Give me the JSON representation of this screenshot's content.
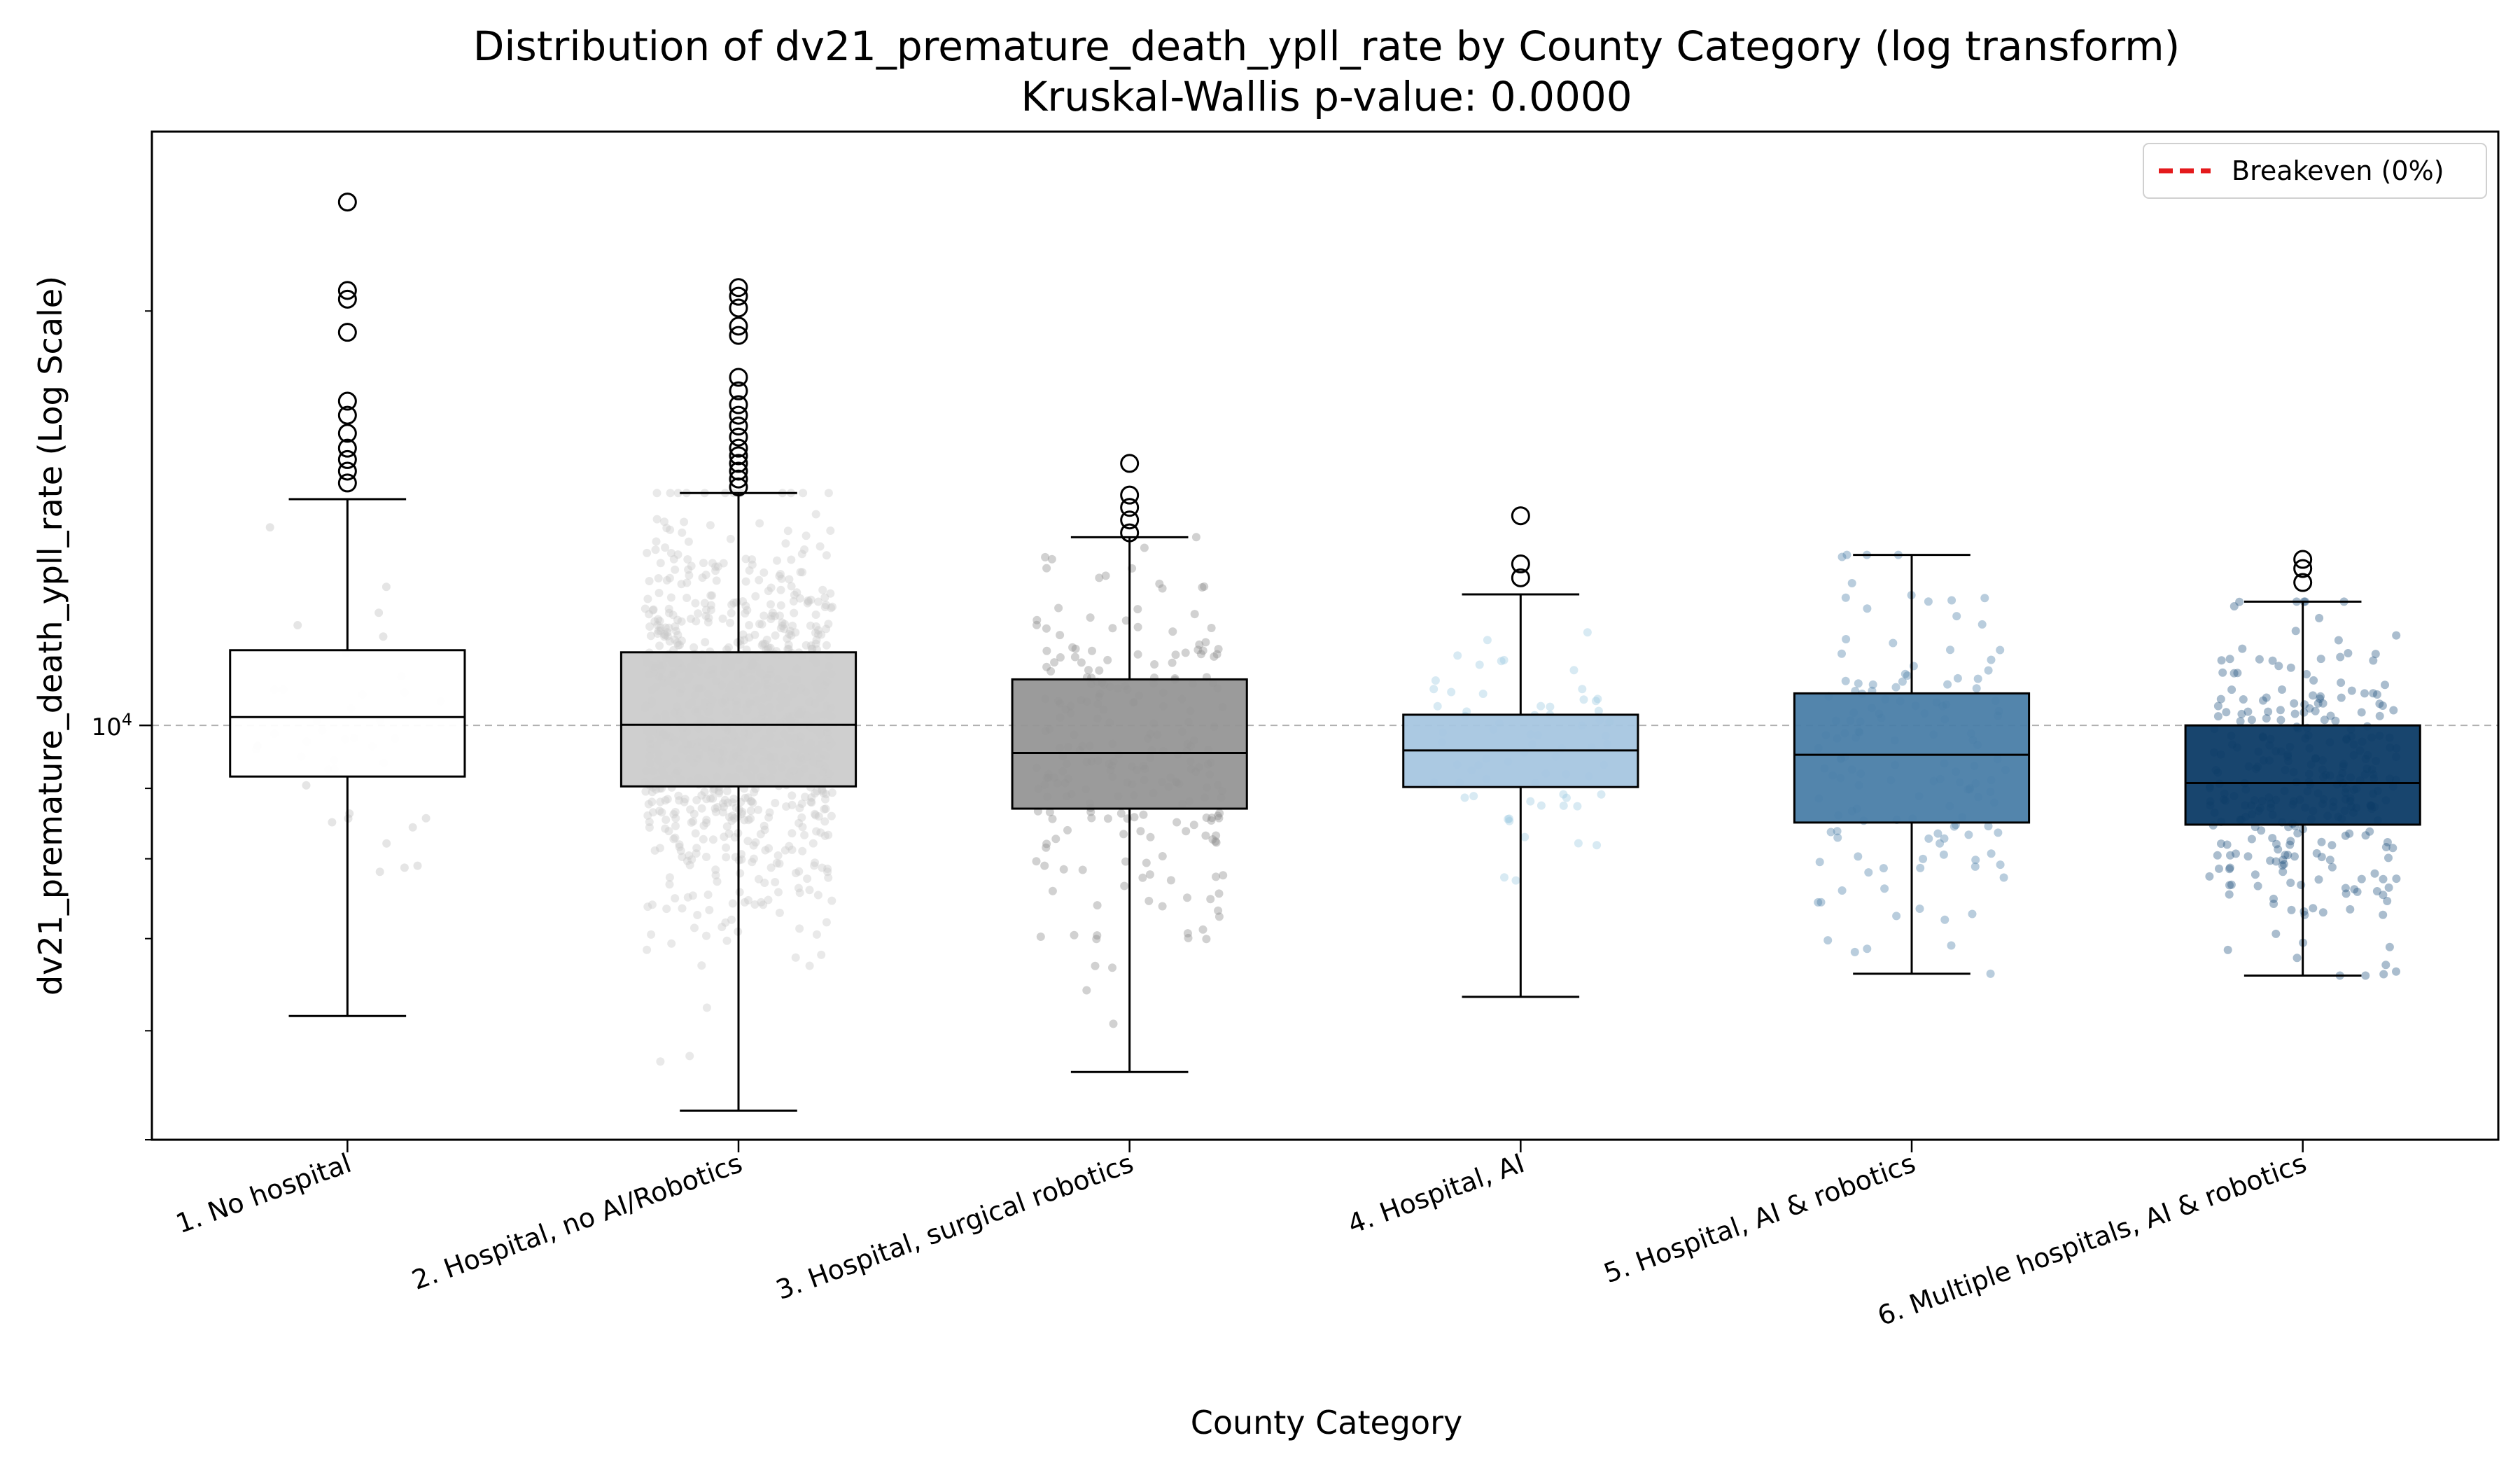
{
  "chart_data": {
    "type": "box",
    "title": "Distribution of dv21_premature_death_ypll_rate by County Category (log transform)",
    "subtitle": "Kruskal-Wallis p-value: 0.0000",
    "xlabel": "County Category",
    "ylabel": "dv21_premature_death_ypll_rate (Log Scale)",
    "y_scale": "log",
    "ylim": [
      5000,
      27000
    ],
    "y_ticks": [
      {
        "value": 10000,
        "label": "10^4"
      }
    ],
    "grid": false,
    "reference_line": {
      "value": 10000,
      "color": "#b0b0b0",
      "style": "dashed"
    },
    "legend": {
      "placement": "top-right",
      "entries": [
        {
          "label": "Breakeven (0%)",
          "color": "#e41a1c",
          "style": "dashed"
        }
      ]
    },
    "categories": [
      "1. No hospital",
      "2. Hospital, no AI/Robotics",
      "3. Hospital, surgical robotics",
      "4. Hospital, AI",
      "5. Hospital, AI & robotics",
      "6. Multiple hospitals, AI & robotics"
    ],
    "series": [
      {
        "category": "1. No hospital",
        "color": "#ffffff",
        "point_color": "#bdbdbd",
        "point_count": 40,
        "whisker_low": 6150,
        "q1": 9180,
        "median": 10140,
        "q3": 11340,
        "whisker_high": 14600,
        "outliers": [
          15000,
          15300,
          15600,
          15900,
          16300,
          16800,
          17200,
          19300,
          20400,
          20700,
          24000
        ]
      },
      {
        "category": "2. Hospital, no AI/Robotics",
        "color": "#cccccc",
        "point_color": "#c8c8c8",
        "point_count": 900,
        "whisker_low": 5250,
        "q1": 9030,
        "median": 10010,
        "q3": 11300,
        "whisker_high": 14750,
        "outliers": [
          14900,
          15100,
          15300,
          15500,
          15700,
          15900,
          16200,
          16500,
          16800,
          17100,
          17500,
          17900,
          19200,
          19500,
          20100,
          20500,
          20800
        ]
      },
      {
        "category": "3. Hospital, surgical robotics",
        "color": "#969696",
        "point_color": "#8c8c8c",
        "point_count": 240,
        "whisker_low": 5600,
        "q1": 8700,
        "median": 9550,
        "q3": 10800,
        "whisker_high": 13700,
        "outliers": [
          13800,
          14100,
          14400,
          14700,
          15500
        ]
      },
      {
        "category": "4. Hospital, AI",
        "color": "#a6c6e0",
        "point_color": "#9ecae1",
        "point_count": 70,
        "whisker_low": 6350,
        "q1": 9020,
        "median": 9590,
        "q3": 10180,
        "whisker_high": 12450,
        "outliers": [
          12800,
          13100,
          14200
        ]
      },
      {
        "category": "5. Hospital, AI & robotics",
        "color": "#4a7ea8",
        "point_color": "#4f81ab",
        "point_count": 140,
        "whisker_low": 6600,
        "q1": 8500,
        "median": 9520,
        "q3": 10550,
        "whisker_high": 13300,
        "outliers": []
      },
      {
        "category": "6. Multiple hospitals, AI & robotics",
        "color": "#0c3b66",
        "point_color": "#2b5a85",
        "point_count": 300,
        "whisker_low": 6580,
        "q1": 8470,
        "median": 9080,
        "q3": 10000,
        "whisker_high": 12300,
        "outliers": [
          12700,
          13000,
          13200
        ]
      }
    ]
  }
}
